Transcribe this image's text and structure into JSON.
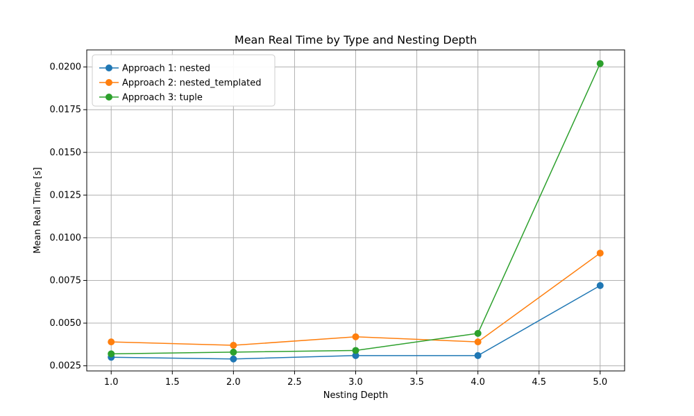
{
  "chart_data": {
    "type": "line",
    "title": "Mean Real Time by Type and Nesting Depth",
    "xlabel": "Nesting Depth",
    "ylabel": "Mean Real Time [s]",
    "x": [
      1.0,
      2.0,
      3.0,
      4.0,
      5.0
    ],
    "series": [
      {
        "name": "Approach 1: nested",
        "color": "#1f77b4",
        "marker": "circle",
        "values": [
          0.003,
          0.0029,
          0.0031,
          0.0031,
          0.0072
        ]
      },
      {
        "name": "Approach 2: nested_templated",
        "color": "#ff7f0e",
        "marker": "circle",
        "values": [
          0.0039,
          0.0037,
          0.0042,
          0.0039,
          0.0091
        ]
      },
      {
        "name": "Approach 3: tuple",
        "color": "#2ca02c",
        "marker": "circle",
        "values": [
          0.0032,
          0.0033,
          0.0034,
          0.0044,
          0.0202
        ]
      }
    ],
    "xlim": [
      0.8,
      5.2
    ],
    "ylim": [
      0.0022,
      0.021
    ],
    "xticks": [
      1.0,
      1.5,
      2.0,
      2.5,
      3.0,
      3.5,
      4.0,
      4.5,
      5.0
    ],
    "xtick_labels": [
      "1.0",
      "1.5",
      "2.0",
      "2.5",
      "3.0",
      "3.5",
      "4.0",
      "4.5",
      "5.0"
    ],
    "yticks": [
      0.0025,
      0.005,
      0.0075,
      0.01,
      0.0125,
      0.015,
      0.0175,
      0.02
    ],
    "ytick_labels": [
      "0.0025",
      "0.0050",
      "0.0075",
      "0.0100",
      "0.0125",
      "0.0150",
      "0.0175",
      "0.0200"
    ],
    "grid": true,
    "legend_position": "top-left"
  }
}
